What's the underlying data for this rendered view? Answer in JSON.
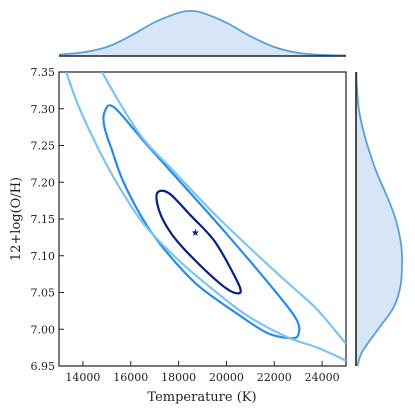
{
  "chart_data": {
    "type": "contour",
    "xlabel": "Temperature (K)",
    "ylabel": "12+log(O/H)",
    "xlim": [
      13000,
      25000
    ],
    "ylim": [
      6.95,
      7.35
    ],
    "x_ticks": [
      14000,
      16000,
      18000,
      20000,
      22000,
      24000
    ],
    "y_ticks": [
      6.95,
      7.0,
      7.05,
      7.1,
      7.15,
      7.2,
      7.25,
      7.3,
      7.35
    ],
    "x_tick_labels": [
      "14000",
      "16000",
      "18000",
      "20000",
      "22000",
      "24000"
    ],
    "y_tick_labels": [
      "6.95",
      "7.00",
      "7.05",
      "7.10",
      "7.15",
      "7.20",
      "7.25",
      "7.30",
      "7.35"
    ],
    "best_fit": {
      "x": 18700,
      "y": 7.13,
      "marker": "star"
    },
    "contours": [
      {
        "level": "inner",
        "color": "#0a1e80",
        "points": [
          [
            17100,
            7.185
          ],
          [
            17600,
            7.185
          ],
          [
            18500,
            7.155
          ],
          [
            19500,
            7.12
          ],
          [
            20300,
            7.075
          ],
          [
            20600,
            7.052
          ],
          [
            20300,
            7.05
          ],
          [
            19700,
            7.063
          ],
          [
            18500,
            7.1
          ],
          [
            17700,
            7.13
          ],
          [
            17200,
            7.16
          ]
        ]
      },
      {
        "level": "middle",
        "color": "#2b8ae6",
        "points": [
          [
            14900,
            7.295
          ],
          [
            15300,
            7.302
          ],
          [
            16700,
            7.25
          ],
          [
            18500,
            7.185
          ],
          [
            20000,
            7.13
          ],
          [
            21700,
            7.065
          ],
          [
            22900,
            7.015
          ],
          [
            23000,
            6.992
          ],
          [
            22600,
            6.988
          ],
          [
            21700,
            6.995
          ],
          [
            20500,
            7.02
          ],
          [
            18800,
            7.06
          ],
          [
            17500,
            7.105
          ],
          [
            16600,
            7.145
          ],
          [
            15700,
            7.2
          ],
          [
            15200,
            7.245
          ],
          [
            14900,
            7.275
          ]
        ]
      },
      {
        "level": "outer",
        "color": "#7fc4ec",
        "open": true,
        "paths": [
          [
            [
              13300,
              7.35
            ],
            [
              13800,
              7.305
            ],
            [
              14500,
              7.255
            ],
            [
              15400,
              7.2
            ],
            [
              16500,
              7.145
            ],
            [
              17800,
              7.1
            ],
            [
              19100,
              7.063
            ],
            [
              20800,
              7.02
            ],
            [
              22500,
              6.99
            ],
            [
              23800,
              6.975
            ],
            [
              24700,
              6.962
            ],
            [
              25000,
              6.957
            ]
          ],
          [
            [
              14800,
              7.35
            ],
            [
              15500,
              7.31
            ],
            [
              16500,
              7.26
            ],
            [
              17800,
              7.215
            ],
            [
              19400,
              7.16
            ],
            [
              21000,
              7.11
            ],
            [
              22500,
              7.065
            ],
            [
              23700,
              7.03
            ],
            [
              24500,
              7.0
            ],
            [
              25000,
              6.98
            ]
          ]
        ]
      }
    ],
    "top_marginal": {
      "variable": "Temperature",
      "x": [
        13000,
        14000,
        15000,
        16000,
        17000,
        18000,
        18500,
        19000,
        20000,
        21000,
        22000,
        23000,
        24000,
        25000
      ],
      "density": [
        0.03,
        0.08,
        0.2,
        0.45,
        0.75,
        0.96,
        1.0,
        0.96,
        0.74,
        0.44,
        0.2,
        0.07,
        0.025,
        0.01
      ]
    },
    "right_marginal": {
      "variable": "12+log(O/H)",
      "y": [
        6.95,
        6.97,
        7.0,
        7.03,
        7.06,
        7.09,
        7.1,
        7.12,
        7.15,
        7.18,
        7.21,
        7.24,
        7.27,
        7.3,
        7.33,
        7.35
      ],
      "density": [
        0.03,
        0.14,
        0.48,
        0.82,
        0.97,
        1.0,
        1.0,
        0.97,
        0.86,
        0.68,
        0.47,
        0.3,
        0.16,
        0.06,
        0.02,
        0.01
      ]
    },
    "colors": {
      "inner_contour": "#0a1e80",
      "middle_contour": "#2b8ae6",
      "outer_contour": "#7fc4ec",
      "marginal_line": "#5a9fd8",
      "marginal_fill": "#d6e6f6"
    }
  }
}
